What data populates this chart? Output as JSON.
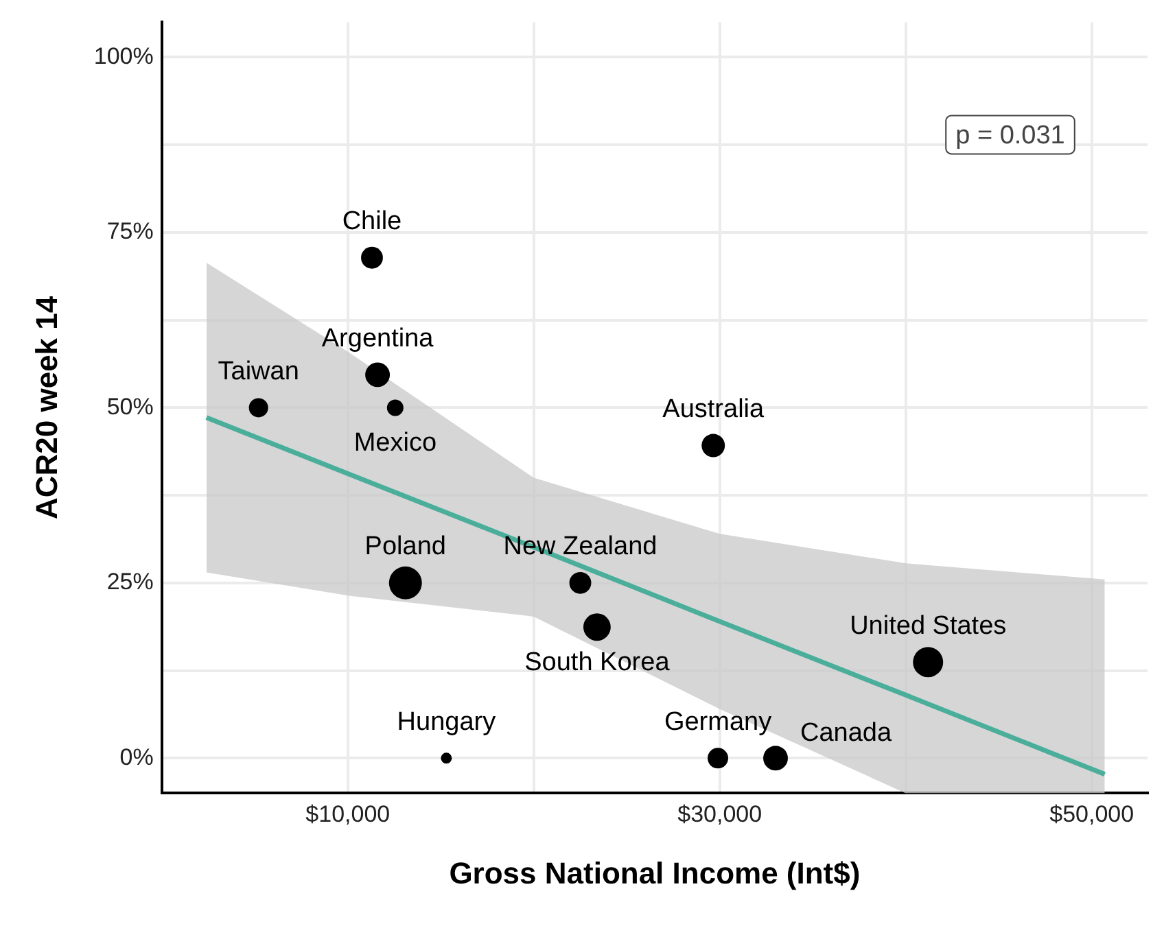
{
  "chart_data": {
    "type": "bubble",
    "xlabel": "Gross National Income (Int$)",
    "ylabel": "ACR20 week 14",
    "xlim": [
      0,
      53000
    ],
    "ylim": [
      -5,
      105
    ],
    "xticks": [
      {
        "value": 10000,
        "label": "$10,000"
      },
      {
        "value": 20000,
        "label": null
      },
      {
        "value": 30000,
        "label": "$30,000"
      },
      {
        "value": 40000,
        "label": null
      },
      {
        "value": 50000,
        "label": "$50,000"
      }
    ],
    "yticks": [
      {
        "value": 0,
        "label": "0%"
      },
      {
        "value": 12.5,
        "label": null
      },
      {
        "value": 25,
        "label": "25%"
      },
      {
        "value": 37.5,
        "label": null
      },
      {
        "value": 50,
        "label": "50%"
      },
      {
        "value": 62.5,
        "label": null
      },
      {
        "value": 75,
        "label": "75%"
      },
      {
        "value": 87.5,
        "label": null
      },
      {
        "value": 100,
        "label": "100%"
      }
    ],
    "grid": true,
    "legend": false,
    "series": [
      {
        "type": "bubble",
        "color": "#000000",
        "x": [
          11300,
          11600,
          5200,
          12550,
          29650,
          13100,
          22500,
          23400,
          41200,
          15300,
          29900,
          33000
        ],
        "values": [
          71.4,
          54.7,
          50,
          50,
          44.6,
          25,
          25,
          18.7,
          13.7,
          0,
          0,
          0
        ],
        "sizes": [
          0.44,
          0.56,
          0.34,
          0.25,
          0.5,
          1,
          0.44,
          0.69,
          0.84,
          0.11,
          0.39,
          0.56
        ]
      },
      {
        "type": "line",
        "color": "#4aae9b",
        "x": [
          2400,
          10000,
          20000,
          30000,
          40000,
          50700
        ],
        "values": [
          48.6,
          40.6,
          30.1,
          19.5,
          9.0,
          -2.3
        ],
        "lower": [
          26.5,
          23.2,
          20.2,
          7.0,
          -5,
          -5
        ],
        "upper": [
          70.7,
          58.0,
          40.0,
          32.0,
          27.8,
          25.5
        ]
      }
    ],
    "annotations": [
      "p = 0.031",
      {
        "text": "Chile",
        "x": 11300,
        "y": 71.4
      },
      {
        "text": "Argentina",
        "x": 11600,
        "y": 54.7
      },
      {
        "text": "Taiwan",
        "x": 5200,
        "y": 50
      },
      {
        "text": "Mexico",
        "x": 12550,
        "y": 50
      },
      {
        "text": "Australia",
        "x": 29650,
        "y": 44.6
      },
      {
        "text": "Poland",
        "x": 13100,
        "y": 25
      },
      {
        "text": "New Zealand",
        "x": 22500,
        "y": 25
      },
      {
        "text": "South Korea",
        "x": 23400,
        "y": 18.7
      },
      {
        "text": "United States",
        "x": 41200,
        "y": 13.7
      },
      {
        "text": "Hungary",
        "x": 15300,
        "y": 0
      },
      {
        "text": "Germany",
        "x": 29900,
        "y": 0
      },
      {
        "text": "Canada",
        "x": 33000,
        "y": 0
      }
    ]
  }
}
